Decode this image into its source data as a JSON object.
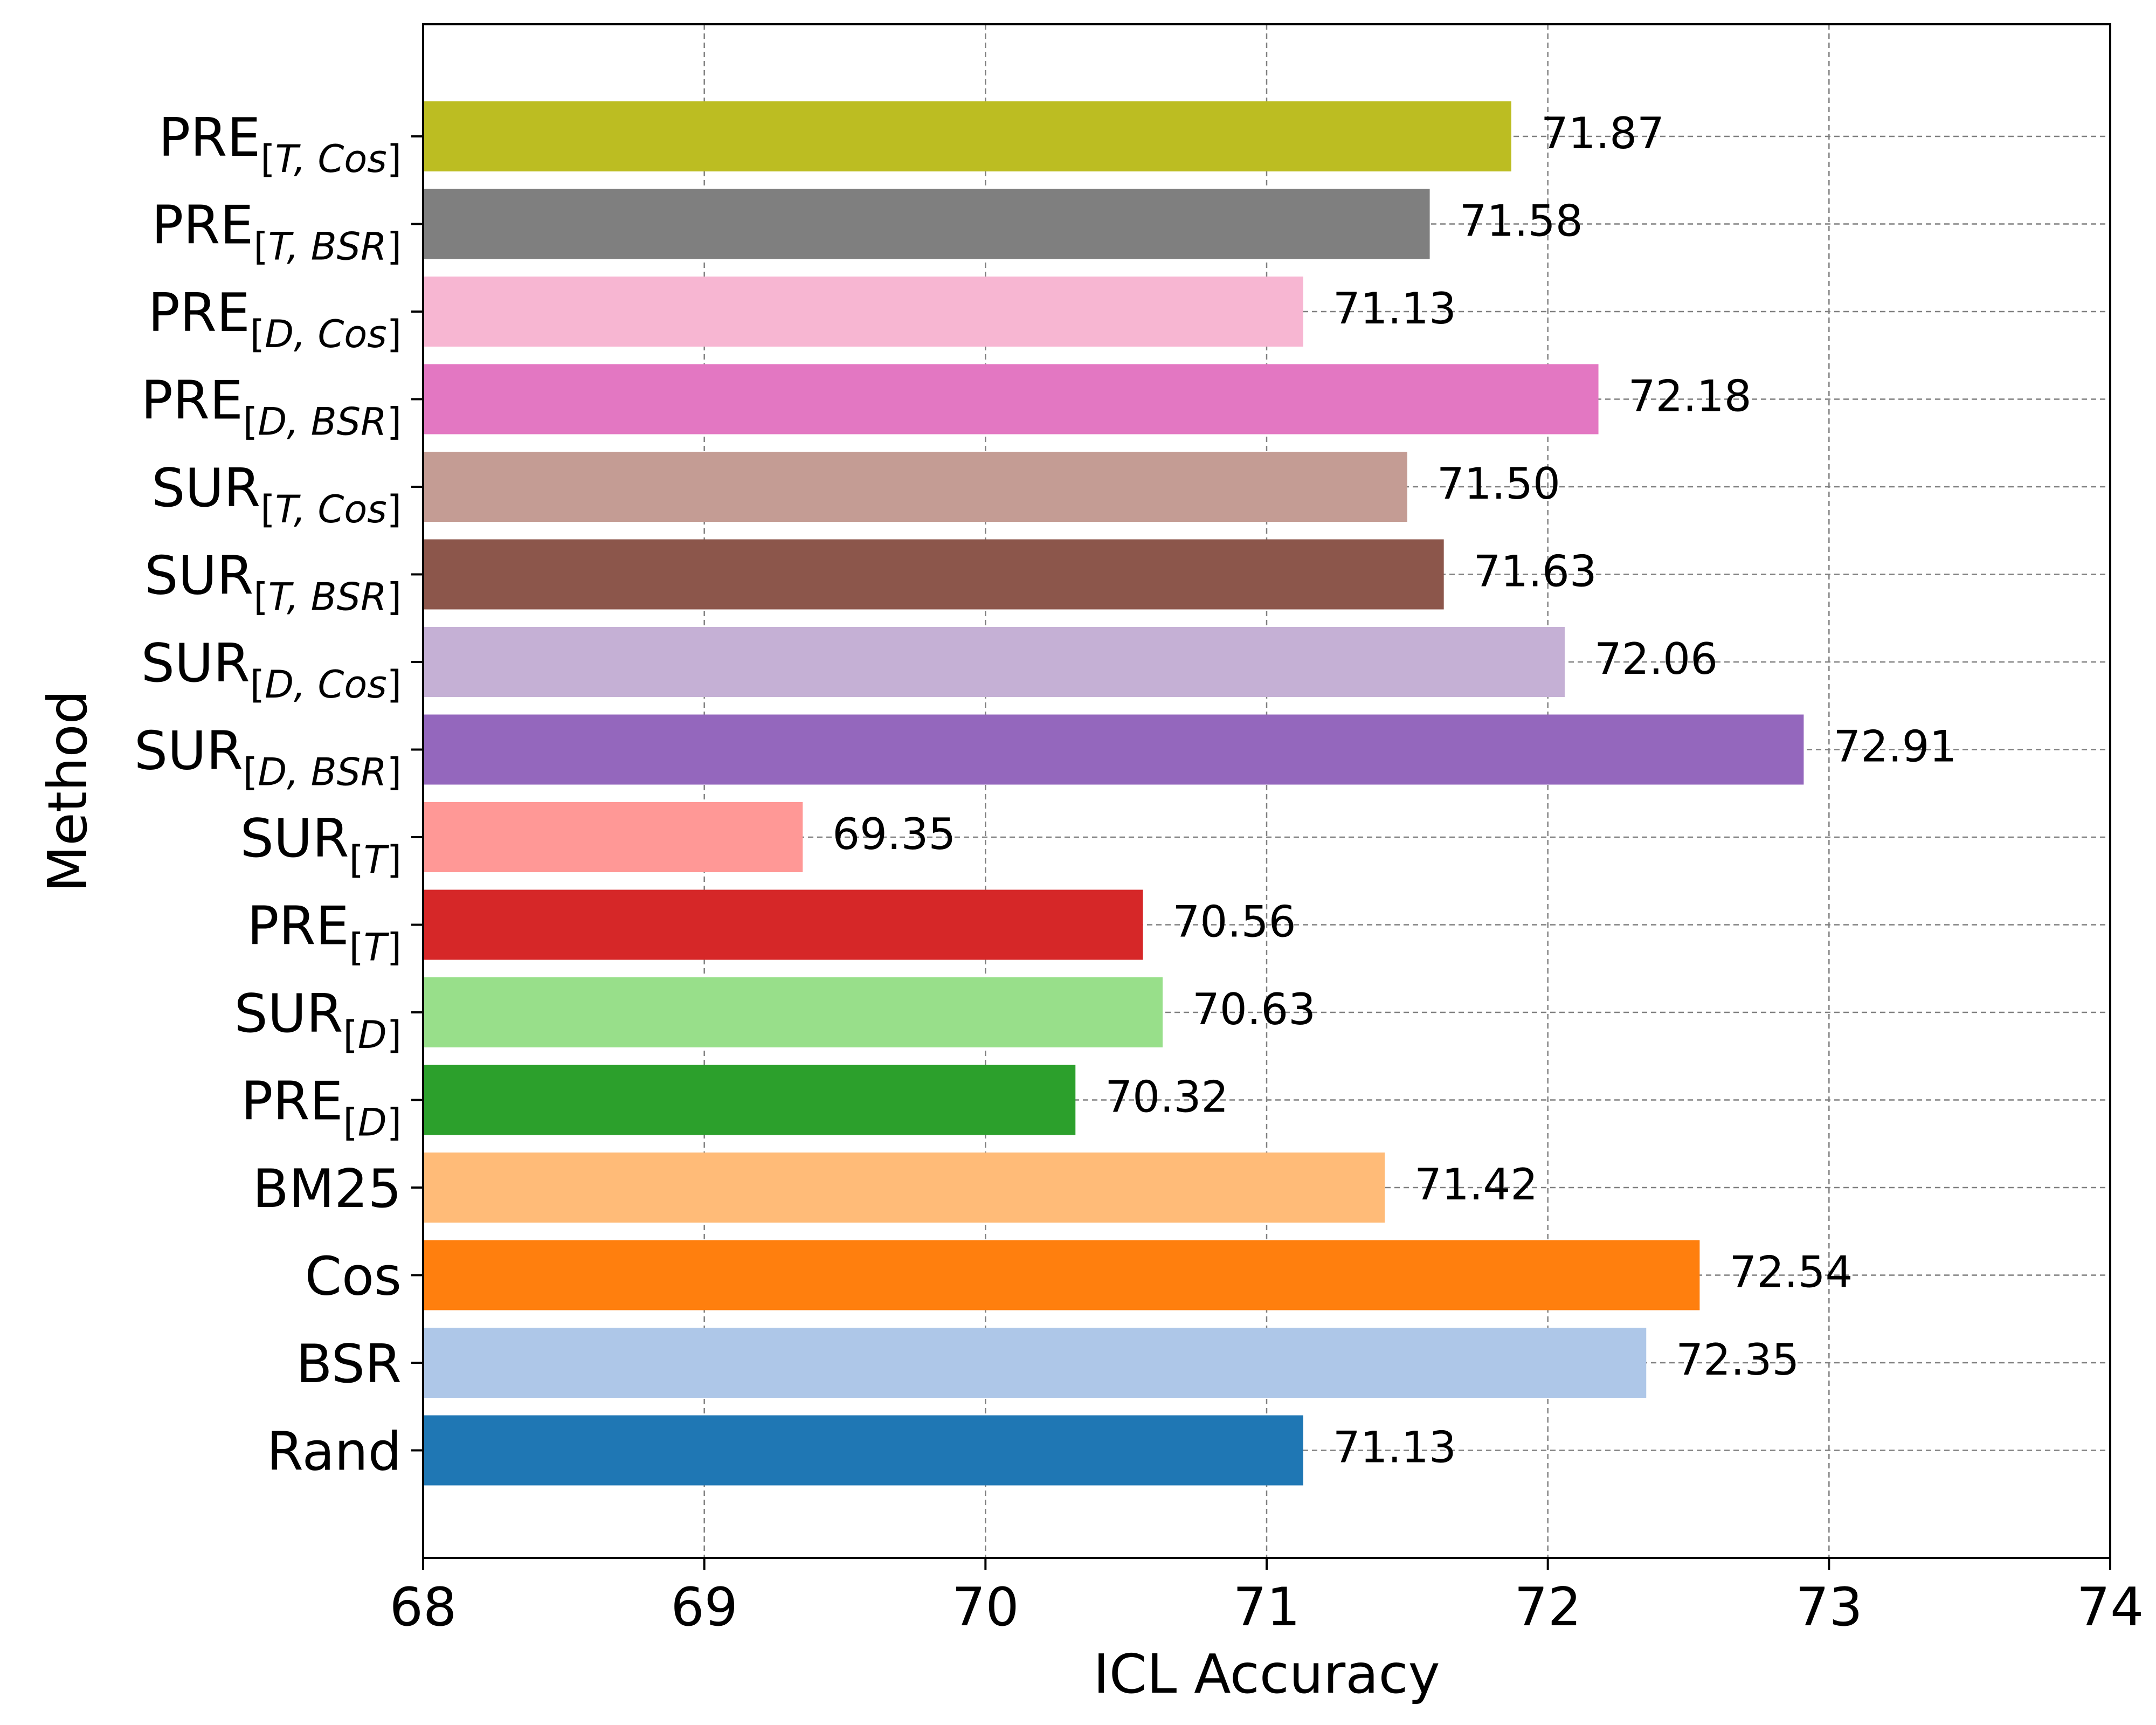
{
  "chart_data": {
    "type": "bar",
    "orientation": "horizontal",
    "xlabel": "ICL Accuracy",
    "ylabel": "Method",
    "xlim": [
      68,
      74
    ],
    "xticks": [
      "68",
      "69",
      "70",
      "71",
      "72",
      "73",
      "74"
    ],
    "grid": true,
    "bars": [
      {
        "base": "Rand",
        "sub": "",
        "value": 71.13,
        "label": "71.13",
        "color": "#1f77b4"
      },
      {
        "base": "BSR",
        "sub": "",
        "value": 72.35,
        "label": "72.35",
        "color": "#aec7e8"
      },
      {
        "base": "Cos",
        "sub": "",
        "value": 72.54,
        "label": "72.54",
        "color": "#ff7f0e"
      },
      {
        "base": "BM25",
        "sub": "",
        "value": 71.42,
        "label": "71.42",
        "color": "#ffbb78"
      },
      {
        "base": "PRE",
        "sub": "D",
        "value": 70.32,
        "label": "70.32",
        "color": "#2ca02c"
      },
      {
        "base": "SUR",
        "sub": "D",
        "value": 70.63,
        "label": "70.63",
        "color": "#98df8a"
      },
      {
        "base": "PRE",
        "sub": "T",
        "value": 70.56,
        "label": "70.56",
        "color": "#d62728"
      },
      {
        "base": "SUR",
        "sub": "T",
        "value": 69.35,
        "label": "69.35",
        "color": "#ff9896"
      },
      {
        "base": "SUR",
        "sub": "D, BSR",
        "value": 72.91,
        "label": "72.91",
        "color": "#9467bd"
      },
      {
        "base": "SUR",
        "sub": "D, Cos",
        "value": 72.06,
        "label": "72.06",
        "color": "#c5b0d5"
      },
      {
        "base": "SUR",
        "sub": "T, BSR",
        "value": 71.63,
        "label": "71.63",
        "color": "#8c564b"
      },
      {
        "base": "SUR",
        "sub": "T, Cos",
        "value": 71.5,
        "label": "71.50",
        "color": "#c49c94"
      },
      {
        "base": "PRE",
        "sub": "D, BSR",
        "value": 72.18,
        "label": "72.18",
        "color": "#e377c2"
      },
      {
        "base": "PRE",
        "sub": "D, Cos",
        "value": 71.13,
        "label": "71.13",
        "color": "#f7b6d2"
      },
      {
        "base": "PRE",
        "sub": "T, BSR",
        "value": 71.58,
        "label": "71.58",
        "color": "#7f7f7f"
      },
      {
        "base": "PRE",
        "sub": "T, Cos",
        "value": 71.87,
        "label": "71.87",
        "color": "#bcbd22"
      }
    ]
  }
}
